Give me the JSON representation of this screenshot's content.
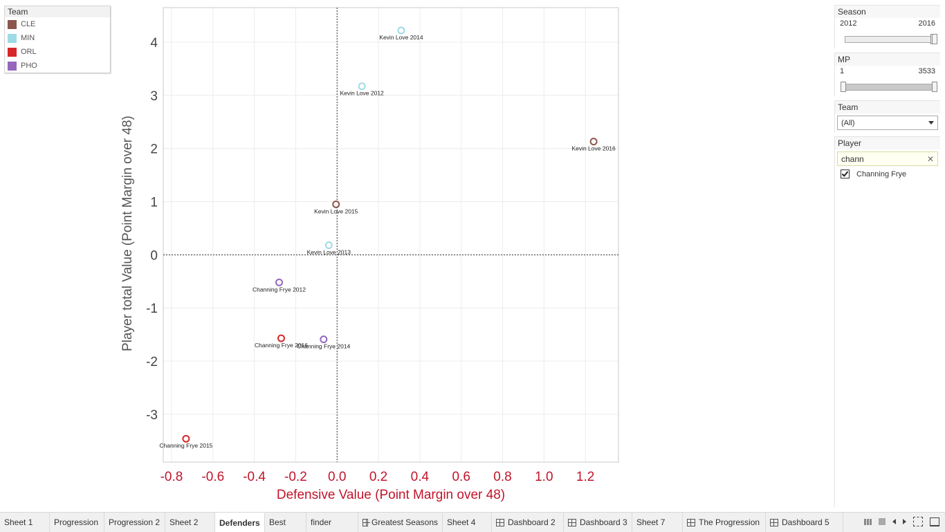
{
  "legend": {
    "title": "Team",
    "items": [
      {
        "label": "CLE",
        "color": "#8c564b"
      },
      {
        "label": "MIN",
        "color": "#9edae5"
      },
      {
        "label": "ORL",
        "color": "#d62728"
      },
      {
        "label": "PHO",
        "color": "#9467bd"
      }
    ]
  },
  "filters": {
    "season": {
      "title": "Season",
      "min": "2012",
      "max": "2016",
      "selected": [
        0.97,
        1.0
      ]
    },
    "mp": {
      "title": "MP",
      "min": "1",
      "max": "3533"
    },
    "team": {
      "title": "Team",
      "value": "(All)"
    },
    "player": {
      "title": "Player",
      "search": "chann",
      "checked_item": "Channing Frye"
    }
  },
  "chart_data": {
    "type": "scatter",
    "xlabel": "Defensive Value (Point Margin over 48)",
    "ylabel": "Player total Value (Point Margin over 48)",
    "xlim": [
      -0.84,
      1.36
    ],
    "ylim": [
      -3.9,
      4.65
    ],
    "xticks": [
      "-0.8",
      "-0.6",
      "-0.4",
      "-0.2",
      "0.0",
      "0.2",
      "0.4",
      "0.6",
      "0.8",
      "1.0",
      "1.2"
    ],
    "yticks": [
      "4",
      "3",
      "2",
      "1",
      "0",
      "-1",
      "-2",
      "-3"
    ],
    "xtick_values": [
      -0.8,
      -0.6,
      -0.4,
      -0.2,
      0.0,
      0.2,
      0.4,
      0.6,
      0.8,
      1.0,
      1.2
    ],
    "ytick_values": [
      4,
      3,
      2,
      1,
      0,
      -1,
      -2,
      -3
    ],
    "reference_lines": {
      "x": 0,
      "y": 0
    },
    "grid": true,
    "legend_position": "top-left",
    "points": [
      {
        "label": "Kevin Love 2014",
        "team": "MIN",
        "x": 0.31,
        "y": 4.22
      },
      {
        "label": "Kevin Love 2012",
        "team": "MIN",
        "x": 0.12,
        "y": 3.17
      },
      {
        "label": "Kevin Love 2016",
        "team": "CLE",
        "x": 1.24,
        "y": 2.13
      },
      {
        "label": "Kevin Love 2015",
        "team": "CLE",
        "x": -0.005,
        "y": 0.95
      },
      {
        "label": "Kevin Love 2013",
        "team": "MIN",
        "x": -0.04,
        "y": 0.18
      },
      {
        "label": "Channing Frye 2012",
        "team": "PHO",
        "x": -0.28,
        "y": -0.52
      },
      {
        "label": "Channing Frye 2016",
        "team": "ORL",
        "x": -0.27,
        "y": -1.57
      },
      {
        "label": "Channing Frye 2014",
        "team": "PHO",
        "x": -0.065,
        "y": -1.59
      },
      {
        "label": "Channing Frye 2015",
        "team": "ORL",
        "x": -0.73,
        "y": -3.46
      }
    ]
  },
  "tabs": [
    {
      "label": "Sheet 1",
      "icon": false
    },
    {
      "label": "Progression",
      "icon": false
    },
    {
      "label": "Progression 2",
      "icon": false
    },
    {
      "label": "Sheet 2",
      "icon": false
    },
    {
      "label": "Defenders",
      "icon": false,
      "active": true
    },
    {
      "label": "Best",
      "icon": false
    },
    {
      "label": "finder",
      "icon": false
    },
    {
      "label": "Greatest Seasons",
      "icon": true
    },
    {
      "label": "Sheet 4",
      "icon": false
    },
    {
      "label": "Dashboard 2",
      "icon": true
    },
    {
      "label": "Dashboard 3",
      "icon": true
    },
    {
      "label": "Sheet 7",
      "icon": false
    },
    {
      "label": "The Progression",
      "icon": true
    },
    {
      "label": "Dashboard 5",
      "icon": true
    }
  ]
}
